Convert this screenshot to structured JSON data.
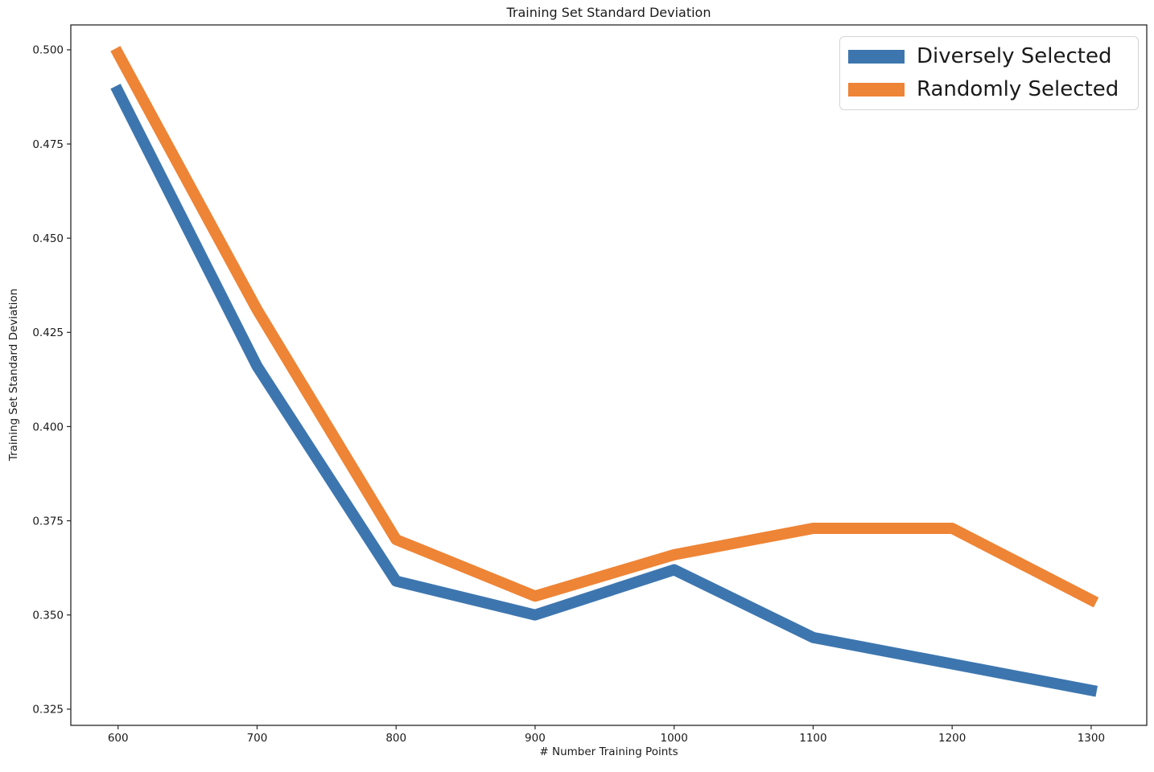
{
  "figure": {
    "background": "#ffffff",
    "text_color": "#1a1a1a",
    "axis_color": "#262626"
  },
  "chart_data": {
    "type": "line",
    "title": "Training Set Standard Deviation",
    "xlabel": "# Number Training Points",
    "ylabel": "Training Set Standard Deviation",
    "x": [
      600,
      700,
      800,
      900,
      1000,
      1100,
      1200,
      1300
    ],
    "series": [
      {
        "name": "Diversely Selected",
        "color": "#3d76af",
        "values": [
          0.489,
          0.416,
          0.359,
          0.35,
          0.362,
          0.344,
          0.337,
          0.33
        ]
      },
      {
        "name": "Randomly Selected",
        "color": "#ee8435",
        "values": [
          0.499,
          0.431,
          0.37,
          0.355,
          0.366,
          0.373,
          0.373,
          0.354
        ]
      }
    ],
    "xticks": [
      600,
      700,
      800,
      900,
      1000,
      1100,
      1200,
      1300
    ],
    "xtick_labels": [
      "600",
      "700",
      "800",
      "900",
      "1000",
      "1100",
      "1200",
      "1300"
    ],
    "yticks": [
      0.325,
      0.35,
      0.375,
      0.4,
      0.425,
      0.45,
      0.475,
      0.5
    ],
    "ytick_labels": [
      "0.325",
      "0.350",
      "0.375",
      "0.400",
      "0.425",
      "0.450",
      "0.475",
      "0.500"
    ],
    "xlim": [
      566,
      1340
    ],
    "ylim": [
      0.3207,
      0.5066
    ],
    "grid": false,
    "legend": {
      "position": "upper right",
      "entries": [
        "Diversely Selected",
        "Randomly Selected"
      ]
    }
  }
}
